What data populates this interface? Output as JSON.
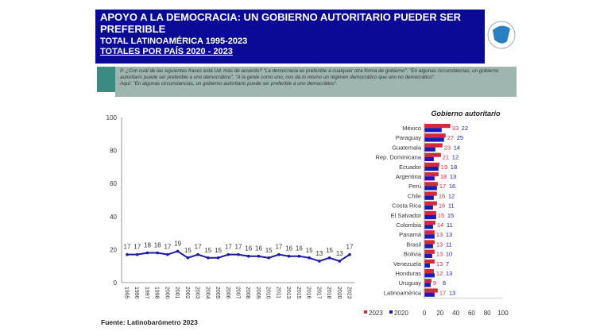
{
  "header": {
    "title": "APOYO A LA DEMOCRACIA: UN GOBIERNO AUTORITARIO PUEDER SER PREFERIBLE",
    "subtitle1": "TOTAL LATINOAMÉRICA 1995-2023",
    "subtitle2": "TOTALES POR PAÍS 2020 - 2023"
  },
  "question": {
    "line1": "P. ¿Con cuál de las siguientes frases está Ud. más de acuerdo? \"La democracia es preferible a cualquier otra forma de gobierno\". \"En algunas circunstancias, un gobierno autoritario puede ser preferible a uno democrático\". \"A la gente como uno, nos da lo mismo un régimen democrático que uno no democrático\".",
    "line2": "Aquí: \"En algunas circunstancias, un gobierno autoritario puede ser preferible a uno democrático\"."
  },
  "source": "Fuente: Latinobarómetro 2023",
  "colors": {
    "header": "#0a0a96",
    "line": "#1a1aa0",
    "bar2023": "#d42a3a",
    "bar2020": "#1a1ab4"
  },
  "chart_data": [
    {
      "type": "line",
      "title": "",
      "ylim": [
        0,
        100
      ],
      "yticks": [
        "0",
        "20",
        "40",
        "60",
        "80",
        "100"
      ],
      "x": [
        "1995",
        "1996",
        "1997",
        "1998",
        "2000",
        "2001",
        "2002",
        "2003",
        "2004",
        "2005",
        "2006",
        "2007",
        "2008",
        "2009",
        "2010",
        "2011",
        "2013",
        "2015",
        "2016",
        "2017",
        "2018",
        "2020",
        "2023"
      ],
      "values": [
        17,
        17,
        18,
        18,
        17,
        19,
        15,
        17,
        15,
        15,
        17,
        17,
        16,
        16,
        15,
        17,
        16,
        16,
        15,
        13,
        15,
        13,
        17
      ]
    },
    {
      "type": "bar",
      "title": "Gobierno autoritario",
      "xlim": [
        0,
        100
      ],
      "xticks": [
        "0",
        "20",
        "40",
        "60",
        "80",
        "100"
      ],
      "categories": [
        "México",
        "Paraguay",
        "Guatemala",
        "Rep. Dominicana",
        "Ecuador",
        "Argentina",
        "Perú",
        "Chile",
        "Costa Rica",
        "El Salvador",
        "Colombia",
        "Panamá",
        "Brasil",
        "Bolivia",
        "Venezuela",
        "Honduras",
        "Uruguay",
        "Latinoamérica"
      ],
      "series": [
        {
          "name": "2023",
          "values": [
            33,
            27,
            23,
            21,
            19,
            18,
            17,
            16,
            16,
            15,
            14,
            13,
            13,
            13,
            13,
            12,
            9,
            17
          ]
        },
        {
          "name": "2020",
          "values": [
            22,
            25,
            14,
            12,
            18,
            13,
            16,
            12,
            11,
            15,
            11,
            13,
            11,
            10,
            7,
            13,
            8,
            13
          ]
        }
      ],
      "legend": "bottom-left"
    }
  ]
}
